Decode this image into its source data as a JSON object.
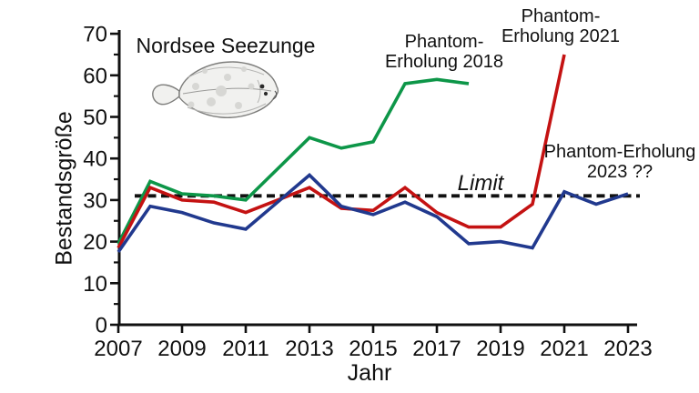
{
  "figure": {
    "title": "Nordsee Seezunge",
    "x_axis_label": "Jahr",
    "y_axis_label": "Bestandsgröße"
  },
  "annotations": {
    "phantom2018": "Phantom-\nErholung 2018",
    "phantom2021": "Phantom-\nErholung 2021",
    "phantom2023": "Phantom-Erholung\n2023 ??",
    "limit_label": "Limit"
  },
  "chart_data": {
    "type": "line",
    "title": "Nordsee Seezunge",
    "xlabel": "Jahr",
    "ylabel": "Bestandsgröße",
    "xlim": [
      2007,
      2023
    ],
    "ylim": [
      0,
      70
    ],
    "grid": false,
    "legend_position": "inline-annotations",
    "x_ticks": [
      2007,
      2009,
      2011,
      2013,
      2015,
      2017,
      2019,
      2021,
      2023
    ],
    "y_ticks": [
      0,
      10,
      20,
      30,
      40,
      50,
      60,
      70
    ],
    "y_minor_ticks": [
      5,
      15,
      25,
      35,
      45,
      55,
      65
    ],
    "limit_line": {
      "label": "Limit",
      "value": 31,
      "style": "dashed",
      "color": "#111111"
    },
    "series": [
      {
        "name": "Phantom-Erholung 2018",
        "color": "#0d9648",
        "x": [
          2007,
          2008,
          2009,
          2010,
          2011,
          2012,
          2013,
          2014,
          2015,
          2016,
          2017,
          2018
        ],
        "values": [
          19.5,
          34.5,
          31.5,
          31,
          30,
          37.5,
          45,
          42.5,
          44,
          58,
          59,
          58
        ]
      },
      {
        "name": "Phantom-Erholung 2021",
        "color": "#c41212",
        "x": [
          2007,
          2008,
          2009,
          2010,
          2011,
          2012,
          2013,
          2014,
          2015,
          2016,
          2017,
          2018,
          2019,
          2020,
          2021
        ],
        "values": [
          18.5,
          33,
          30,
          29.5,
          27,
          30,
          33,
          28,
          27.5,
          33,
          27,
          23.5,
          23.5,
          29,
          65
        ]
      },
      {
        "name": "Phantom-Erholung 2023 ??",
        "color": "#21398e",
        "x": [
          2007,
          2008,
          2009,
          2010,
          2011,
          2012,
          2013,
          2014,
          2015,
          2016,
          2017,
          2018,
          2019,
          2020,
          2021,
          2022,
          2023
        ],
        "values": [
          17.5,
          28.5,
          27,
          24.5,
          23,
          29.5,
          36,
          28.5,
          26.5,
          29.5,
          26,
          19.5,
          20,
          18.5,
          32,
          29,
          31.5
        ]
      }
    ]
  }
}
